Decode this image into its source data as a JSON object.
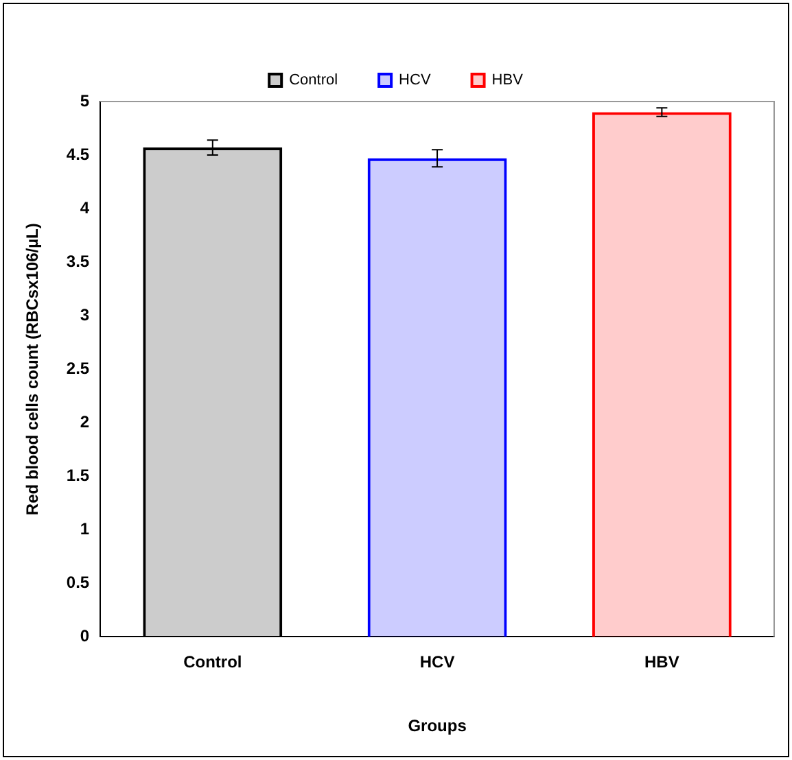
{
  "chart_data": {
    "type": "bar",
    "xlabel": "Groups",
    "ylabel": "Red blood cells count (RBCsx106/µL)",
    "categories": [
      "Control",
      "HCV",
      "HBV"
    ],
    "series": [
      {
        "name": "Control",
        "color": "#000000",
        "values": [
          4.57,
          null,
          null
        ],
        "errors": [
          0.07,
          null,
          null
        ]
      },
      {
        "name": "HCV",
        "color": "#0000ff",
        "values": [
          null,
          4.47,
          null
        ],
        "errors": [
          null,
          0.08,
          null
        ]
      },
      {
        "name": "HBV",
        "color": "#ff0000",
        "values": [
          null,
          null,
          4.9
        ],
        "errors": [
          null,
          null,
          0.04
        ]
      }
    ],
    "ylim": [
      0,
      5
    ],
    "yticks": [
      0,
      0.5,
      1,
      1.5,
      2,
      2.5,
      3,
      3.5,
      4,
      4.5,
      5
    ],
    "grid": false,
    "legend": "top"
  }
}
